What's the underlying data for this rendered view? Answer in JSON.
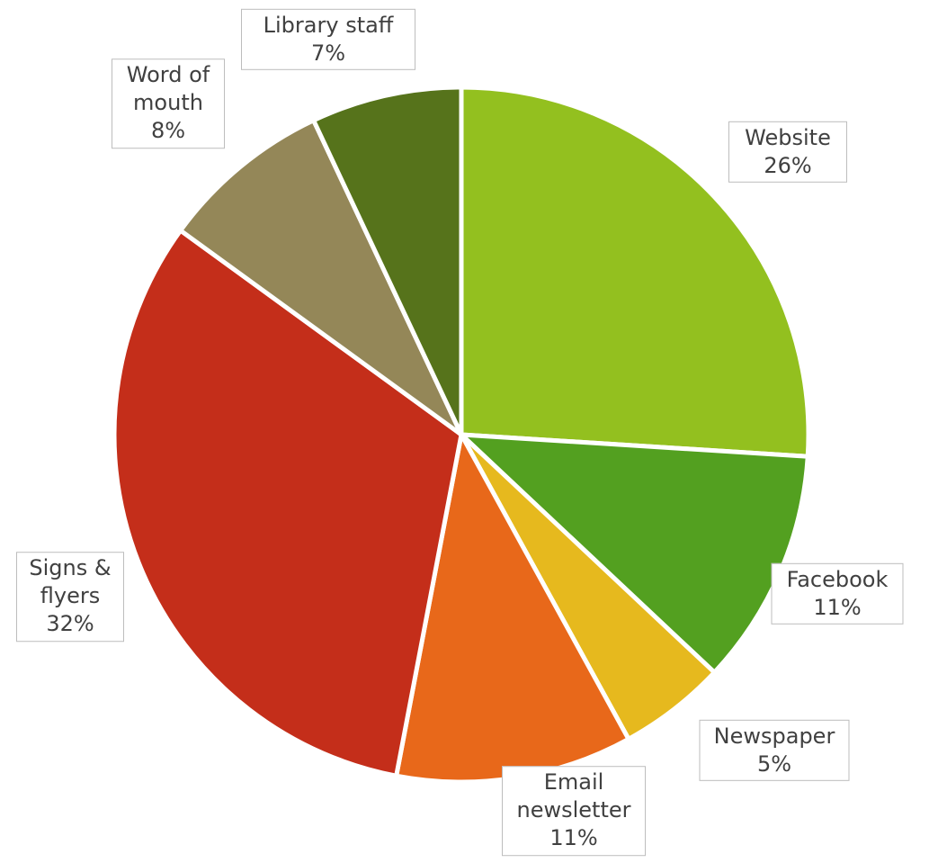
{
  "chart_data": {
    "type": "pie",
    "categories": [
      "Website",
      "Facebook",
      "Newspaper",
      "Email newsletter",
      "Signs & flyers",
      "Word of mouth",
      "Library staff"
    ],
    "values": [
      26,
      11,
      5,
      11,
      32,
      8,
      7
    ],
    "value_labels": [
      "26%",
      "11%",
      "5%",
      "11%",
      "32%",
      "8%",
      "7%"
    ],
    "colors": [
      "#93c01f",
      "#53a020",
      "#e6b91e",
      "#e8681a",
      "#c42e1a",
      "#948758",
      "#56731b"
    ]
  }
}
